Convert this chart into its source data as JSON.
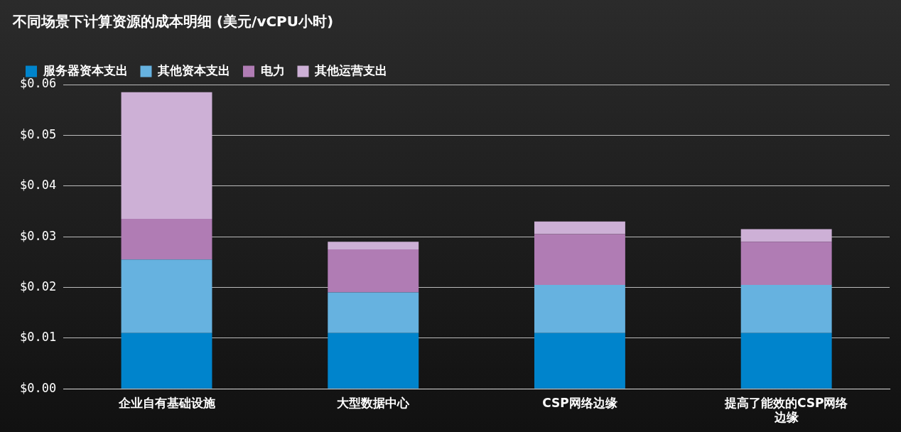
{
  "chart_data": {
    "type": "bar",
    "title": "不同场景下计算资源的成本明细 (美元/vCPU小时)",
    "stacked": true,
    "categories": [
      "企业自有基础设施",
      "大型数据中心",
      "CSP网络边缘",
      "提高了能效的CSP网络边缘"
    ],
    "series": [
      {
        "name": "服务器资本支出",
        "color": "#0084cc",
        "values": [
          0.011,
          0.011,
          0.011,
          0.011
        ]
      },
      {
        "name": "其他资本支出",
        "color": "#66b2e0",
        "values": [
          0.0145,
          0.008,
          0.0095,
          0.0095
        ]
      },
      {
        "name": "电力",
        "color": "#b07cb4",
        "values": [
          0.008,
          0.0085,
          0.01,
          0.0085
        ]
      },
      {
        "name": "其他运营支出",
        "color": "#cdb0d6",
        "values": [
          0.025,
          0.0015,
          0.0025,
          0.0025
        ]
      }
    ],
    "ylim": [
      0,
      0.06
    ],
    "yticks": [
      {
        "value": 0,
        "label": "$0.00"
      },
      {
        "value": 0.01,
        "label": "$0.01"
      },
      {
        "value": 0.02,
        "label": "$0.02"
      },
      {
        "value": 0.03,
        "label": "$0.03"
      },
      {
        "value": 0.04,
        "label": "$0.04"
      },
      {
        "value": 0.05,
        "label": "$0.05"
      },
      {
        "value": 0.06,
        "label": "$0.06"
      }
    ],
    "grid": "y",
    "legend": "top left"
  }
}
